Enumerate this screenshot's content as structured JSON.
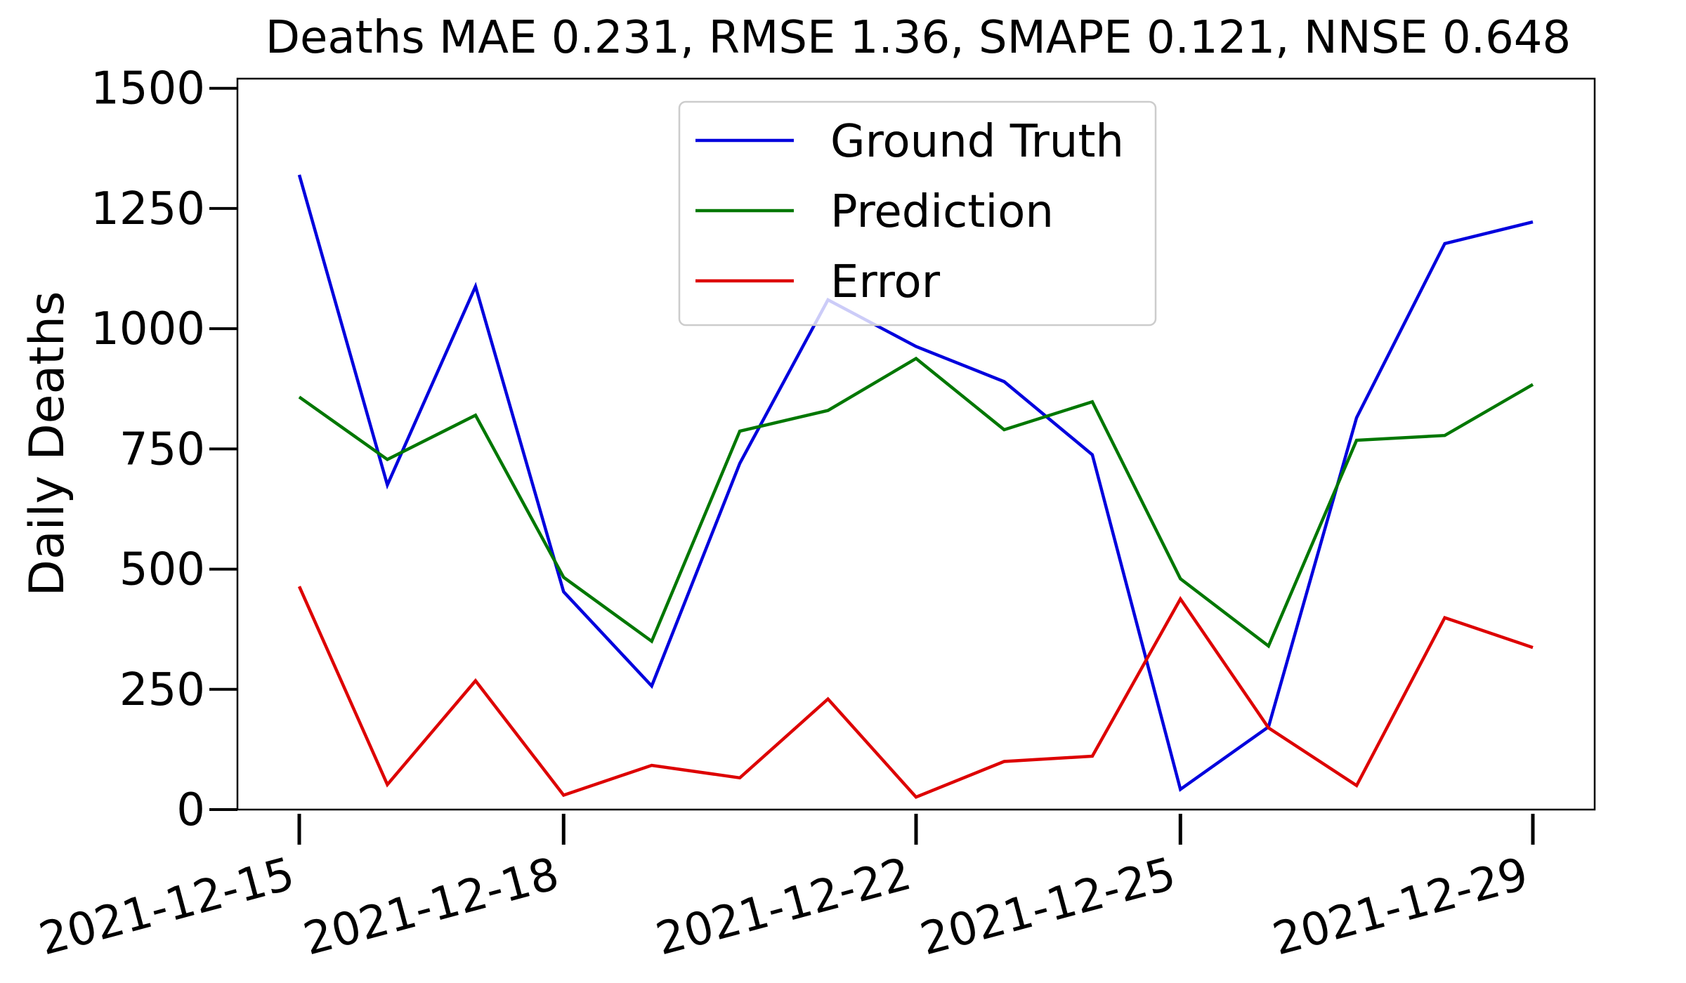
{
  "chart_data": {
    "type": "line",
    "title": "Deaths MAE 0.231, RMSE 1.36, SMAPE 0.121, NNSE 0.648",
    "xlabel": "",
    "ylabel": "Daily Deaths",
    "x": [
      "2021-12-15",
      "2021-12-16",
      "2021-12-17",
      "2021-12-18",
      "2021-12-19",
      "2021-12-20",
      "2021-12-21",
      "2021-12-22",
      "2021-12-23",
      "2021-12-24",
      "2021-12-25",
      "2021-12-26",
      "2021-12-27",
      "2021-12-28",
      "2021-12-29"
    ],
    "xticks": [
      "2021-12-15",
      "2021-12-18",
      "2021-12-22",
      "2021-12-25",
      "2021-12-29"
    ],
    "ylim": [
      0,
      1520
    ],
    "yticks": [
      0,
      250,
      500,
      750,
      1000,
      1250,
      1500
    ],
    "grid": false,
    "legend_position": "top-center",
    "series": [
      {
        "name": "Ground Truth",
        "color": "#0000dd",
        "values": [
          1320,
          675,
          1088,
          453,
          257,
          720,
          1060,
          963,
          890,
          738,
          42,
          172,
          815,
          1177,
          1222
        ]
      },
      {
        "name": "Prediction",
        "color": "#007700",
        "values": [
          858,
          728,
          820,
          483,
          350,
          787,
          830,
          938,
          790,
          848,
          480,
          340,
          768,
          778,
          884
        ]
      },
      {
        "name": "Error",
        "color": "#dd0000",
        "values": [
          464,
          52,
          268,
          30,
          92,
          66,
          230,
          26,
          100,
          111,
          438,
          170,
          50,
          399,
          337
        ]
      }
    ]
  }
}
